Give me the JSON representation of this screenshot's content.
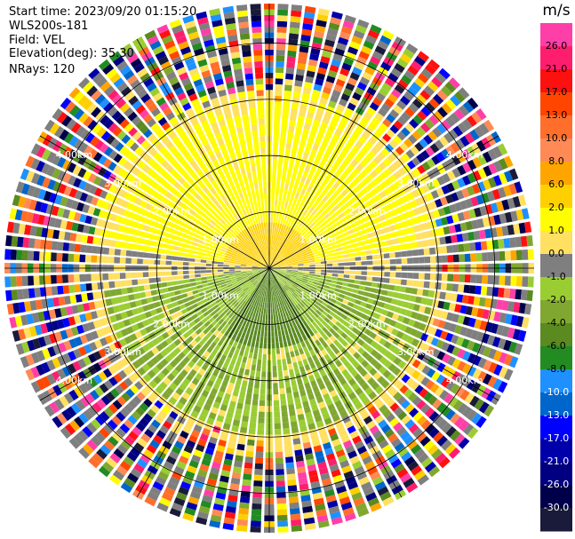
{
  "header": {
    "start_time": "Start time: 2023/09/20 01:15:20",
    "station": "WLS200s-181",
    "field": "Field: VEL",
    "elevation": "Elevation(deg): 35.30",
    "nrays": "NRays: 120"
  },
  "chart_data": {
    "type": "heatmap",
    "subtype": "ppi-polar",
    "rays": 120,
    "range_rings_km": [
      1.0,
      2.0,
      3.0,
      4.0
    ],
    "outer_range_km": 4.7,
    "ring_label_texts": [
      "1.00km",
      "2.00km",
      "3.00km",
      "4.00km"
    ],
    "gridline_angles_deg": [
      0,
      30,
      60,
      90,
      120,
      150
    ],
    "colorbar": {
      "unit": "m/s",
      "ticks": [
        "26.0",
        "21.0",
        "17.0",
        "13.0",
        "10.0",
        "8.0",
        "6.0",
        "2.0",
        "1.0",
        "0.0",
        "-1.0",
        "-2.0",
        "-4.0",
        "-6.0",
        "-8.0",
        "-10.0",
        "-13.0",
        "-17.0",
        "-21.0",
        "-26.0",
        "-30.0"
      ],
      "colors": [
        "#ff3fa8",
        "#ff1e6e",
        "#ff1010",
        "#ff4500",
        "#ff6e2a",
        "#ff8a55",
        "#ffa500",
        "#ffd000",
        "#fffd00",
        "#ffe060",
        "#7f7f7f",
        "#9acd32",
        "#80a830",
        "#5a8a20",
        "#228b22",
        "#1e90ff",
        "#0066cc",
        "#0000ff",
        "#0000aa",
        "#000080",
        "#00004a",
        "#1a1a3a"
      ]
    },
    "velocity_regions": [
      {
        "desc": "inner north",
        "range_km": [
          0,
          0.8
        ],
        "velocity_ms": 4.0
      },
      {
        "desc": "north sector",
        "range_km": [
          0.8,
          2.8
        ],
        "velocity_ms": 1.5
      },
      {
        "desc": "east-west band",
        "range_km": [
          0,
          2.8
        ],
        "velocity_ms": 0.0
      },
      {
        "desc": "inner south",
        "range_km": [
          0,
          1.4
        ],
        "velocity_ms": -5.0
      },
      {
        "desc": "south sector",
        "range_km": [
          1.4,
          3.0
        ],
        "velocity_ms": -1.5
      },
      {
        "desc": "outer",
        "range_km": [
          3.0,
          4.7
        ],
        "velocity_ms": "noise"
      }
    ]
  }
}
